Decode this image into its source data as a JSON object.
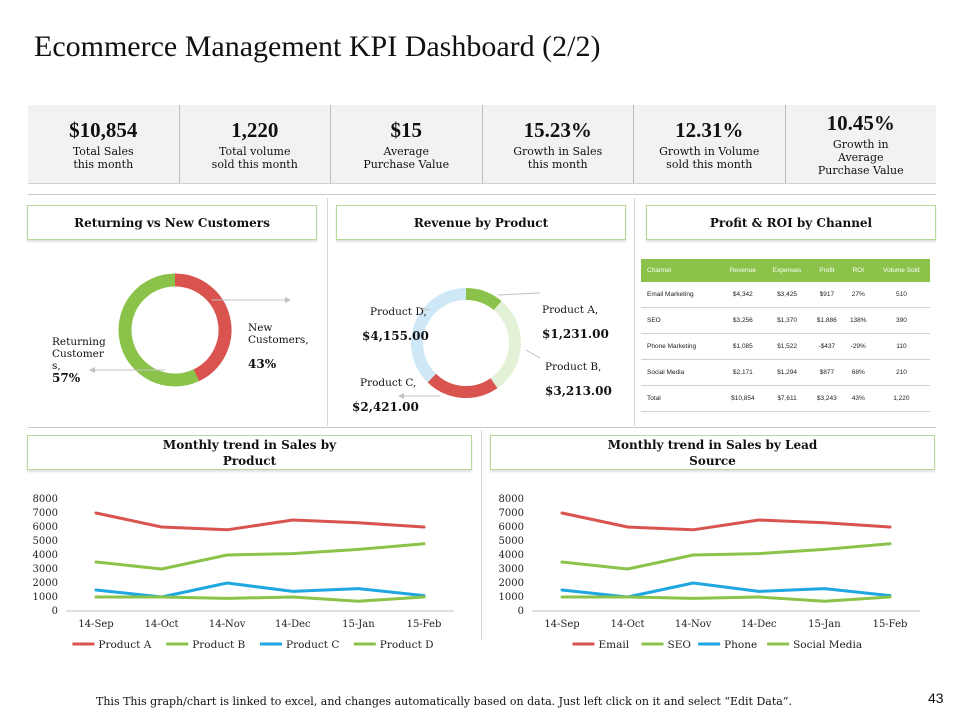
{
  "title": "Ecommerce Management KPI Dashboard (2/2)",
  "kpis": [
    {
      "value": "$10,854",
      "label": "Total Sales\nthis month"
    },
    {
      "value": "1,220",
      "label": "Total volume\nsold this month"
    },
    {
      "value": "$15",
      "label": "Average\nPurchase Value"
    },
    {
      "value": "15.23%",
      "label": "Growth in Sales\nthis month"
    },
    {
      "value": "12.31%",
      "label": "Growth in Volume\nsold this month"
    },
    {
      "value": "10.45%",
      "label": "Growth in\nAverage\nPurchase Value"
    }
  ],
  "panels": {
    "returning": "Returning vs New Customers",
    "revenue": "Revenue by Product",
    "profit": "Profit & ROI by Channel",
    "trend_product": "Monthly trend in Sales by\nProduct",
    "trend_lead": "Monthly trend in Sales by Lead\nSource"
  },
  "donut_labels": {
    "new_name": "New\nCustomers,",
    "new_pct": "43%",
    "ret_name": "Returning\nCustomer\ns,",
    "ret_pct": "57%",
    "prodA_name": "Product A,",
    "prodA_val": "$1,231.00",
    "prodB_name": "Product B,",
    "prodB_val": "$3,213.00",
    "prodC_name": "Product C,",
    "prodC_val": "$2,421.00",
    "prodD_name": "Product D,",
    "prodD_val": "$4,155.00"
  },
  "roi_table": {
    "headers": [
      "Channel",
      "Revenue",
      "Expenses",
      "Profit",
      "ROI",
      "Volume Sold"
    ],
    "rows": [
      [
        "Email Marketing",
        "$4,342",
        "$3,425",
        "$917",
        "27%",
        "510"
      ],
      [
        "SEO",
        "$3,256",
        "$1,370",
        "$1,886",
        "138%",
        "390"
      ],
      [
        "Phone Marketing",
        "$1,085",
        "$1,522",
        "-$437",
        "-29%",
        "110"
      ],
      [
        "Social Media",
        "$2,171",
        "$1,294",
        "$877",
        "68%",
        "210"
      ],
      [
        "Total",
        "$10,854",
        "$7,611",
        "$3,243",
        "43%",
        "1,220"
      ]
    ]
  },
  "footer": "This This graph/chart is linked to excel, and changes automatically  based on data.  Just left click on it and select “Edit Data”.",
  "page_number": "43",
  "colors": {
    "red": "#d9534f",
    "green": "#8bc34a",
    "blue": "#1ea7e1",
    "light_green": "#e3f1d6",
    "light_blue": "#cfe8f7"
  },
  "chart_data": [
    {
      "type": "pie",
      "title": "Returning vs New Customers",
      "categories": [
        "New Customers",
        "Returning Customers"
      ],
      "values": [
        43,
        57
      ],
      "colors": [
        "#d9534f",
        "#8bc34a"
      ]
    },
    {
      "type": "pie",
      "title": "Revenue by Product",
      "categories": [
        "Product A",
        "Product B",
        "Product C",
        "Product D"
      ],
      "values": [
        1231,
        3213,
        2421,
        4155
      ],
      "colors": [
        "#8bc34a",
        "#e3f1d6",
        "#d9534f",
        "#cfe8f7"
      ]
    },
    {
      "type": "line",
      "title": "Monthly trend in Sales by Product",
      "categories": [
        "14-Sep",
        "14-Oct",
        "14-Nov",
        "14-Dec",
        "15-Jan",
        "15-Feb"
      ],
      "yticks": [
        "0",
        "1000",
        "2000",
        "3000",
        "4000",
        "5000",
        "6000",
        "7000",
        "8000"
      ],
      "ylim": [
        0,
        8000
      ],
      "series": [
        {
          "name": "Product A",
          "color": "#d9534f",
          "values": [
            7000,
            6000,
            5800,
            6500,
            6300,
            6000
          ]
        },
        {
          "name": "Product B",
          "color": "#8bc34a",
          "values": [
            3500,
            3000,
            4000,
            4100,
            4400,
            4800
          ]
        },
        {
          "name": "Product C",
          "color": "#1ea7e1",
          "values": [
            1500,
            1000,
            2000,
            1400,
            1600,
            1100
          ]
        },
        {
          "name": "Product D",
          "color": "#8bc34a",
          "values": [
            1000,
            1000,
            900,
            1000,
            700,
            1000
          ]
        }
      ]
    },
    {
      "type": "line",
      "title": "Monthly trend in Sales by Lead Source",
      "categories": [
        "14-Sep",
        "14-Oct",
        "14-Nov",
        "14-Dec",
        "15-Jan",
        "15-Feb"
      ],
      "yticks": [
        "0",
        "1000",
        "2000",
        "3000",
        "4000",
        "5000",
        "6000",
        "7000",
        "8000"
      ],
      "ylim": [
        0,
        8000
      ],
      "series": [
        {
          "name": "Email",
          "color": "#d9534f",
          "values": [
            7000,
            6000,
            5800,
            6500,
            6300,
            6000
          ]
        },
        {
          "name": "SEO",
          "color": "#8bc34a",
          "values": [
            3500,
            3000,
            4000,
            4100,
            4400,
            4800
          ]
        },
        {
          "name": "Phone",
          "color": "#1ea7e1",
          "values": [
            1500,
            1000,
            2000,
            1400,
            1600,
            1100
          ]
        },
        {
          "name": "Social Media",
          "color": "#8bc34a",
          "values": [
            1000,
            1000,
            900,
            1000,
            700,
            1000
          ]
        }
      ]
    }
  ]
}
